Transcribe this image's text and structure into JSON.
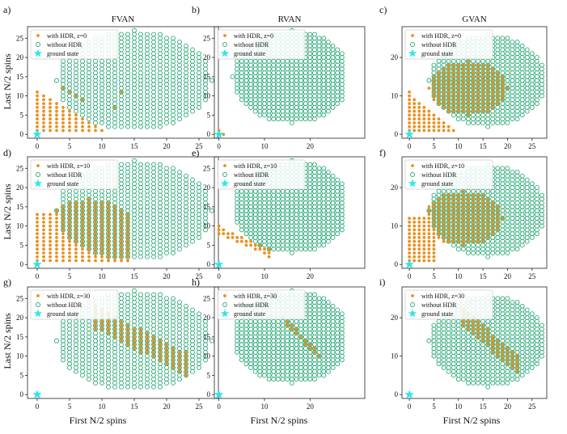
{
  "figure": {
    "column_titles": [
      "FVAN",
      "RVAN",
      "GVAN"
    ],
    "xlabel": "First N/2 spins",
    "ylabel": "Last N/2 spins"
  },
  "colors": {
    "hdr": "#e8901e",
    "no_hdr": "#2aa876",
    "ground": "#2ee6e6"
  },
  "chart_data": [
    {
      "panel": "a)",
      "type": "scatter",
      "title": "FVAN",
      "z_label": "with HDR, z=0",
      "legend": [
        "with HDR, z=0",
        "without HDR",
        "ground state"
      ],
      "xticks": [
        0,
        5,
        10,
        15,
        20,
        25
      ],
      "yticks": [
        0,
        5,
        10,
        15,
        20,
        25
      ],
      "xlim": [
        -1.5,
        28
      ],
      "ylim": [
        -1,
        28
      ],
      "ground_state": [
        0,
        0
      ],
      "nohdr": {
        "cx": 15,
        "cy": 14,
        "rx": 12,
        "ry": 13,
        "ymin": 2,
        "x0": 2
      },
      "hdr": [
        {
          "kind": "tri",
          "x0": 0,
          "x1": 10,
          "y0": 1,
          "y1": 11
        },
        {
          "kind": "pts",
          "list": [
            [
              4,
              12
            ],
            [
              5,
              11
            ],
            [
              6,
              10
            ],
            [
              7,
              9
            ],
            [
              13,
              11
            ],
            [
              12,
              7
            ]
          ]
        },
        {
          "kind": "pts",
          "list": [
            [
              1,
              1
            ]
          ]
        }
      ]
    },
    {
      "panel": "b)",
      "type": "scatter",
      "title": "RVAN",
      "z_label": "with HDR, z=0",
      "legend": [
        "with HDR, z=0",
        "without HDR",
        "ground state"
      ],
      "xticks": [
        0,
        10,
        20
      ],
      "yticks": [
        0,
        5,
        10,
        15,
        20,
        25
      ],
      "xlim": [
        -1,
        32
      ],
      "ylim": [
        -1,
        28
      ],
      "ground_state": [
        0,
        0
      ],
      "nohdr": {
        "cx": 16,
        "cy": 15,
        "rx": 13,
        "ry": 12,
        "ymin": 3,
        "x0": 2
      },
      "hdr": [
        {
          "kind": "pts",
          "list": [
            [
              0,
              1
            ],
            [
              1,
              0
            ],
            [
              0,
              0
            ]
          ]
        }
      ]
    },
    {
      "panel": "c)",
      "type": "scatter",
      "title": "GVAN",
      "z_label": "with HDR, z=0",
      "legend": [
        "with HDR, z=0",
        "without HDR",
        "ground state"
      ],
      "xticks": [
        0,
        5,
        10,
        15,
        20,
        25
      ],
      "yticks": [
        0,
        10,
        20
      ],
      "xlim": [
        -1.5,
        28
      ],
      "ylim": [
        -1,
        28
      ],
      "ground_state": [
        0,
        0
      ],
      "nohdr": {
        "cx": 16,
        "cy": 14,
        "rx": 12,
        "ry": 12,
        "ymin": 2,
        "x0": 2
      },
      "hdr": [
        {
          "kind": "tri",
          "x0": 0,
          "x1": 9,
          "y0": 1,
          "y1": 11
        },
        {
          "kind": "ell",
          "cx": 12,
          "cy": 12,
          "rx": 8,
          "ry": 7
        }
      ]
    },
    {
      "panel": "d)",
      "type": "scatter",
      "title": "",
      "z_label": "with HDR, z=10",
      "legend": [
        "with HDR, z=10",
        "without HDR",
        "ground state"
      ],
      "xticks": [
        0,
        5,
        10,
        15,
        20,
        25
      ],
      "yticks": [
        0,
        5,
        10,
        15,
        20,
        25
      ],
      "xlim": [
        -1.5,
        28
      ],
      "ylim": [
        -1,
        28
      ],
      "ground_state": [
        0,
        0
      ],
      "nohdr": {
        "cx": 15,
        "cy": 14,
        "rx": 12,
        "ry": 13,
        "ymin": 2,
        "x0": 3
      },
      "hdr": [
        {
          "kind": "rect",
          "x0": 0,
          "x1": 14,
          "y0": 1,
          "y1": 13
        },
        {
          "kind": "ell",
          "cx": 8,
          "cy": 12,
          "rx": 6,
          "ry": 5
        }
      ]
    },
    {
      "panel": "e)",
      "type": "scatter",
      "title": "",
      "z_label": "with HDR, z=10",
      "legend": [
        "with HDR, z=10",
        "without HDR",
        "ground state"
      ],
      "xticks": [
        0,
        10,
        20
      ],
      "yticks": [
        0,
        5,
        10,
        15,
        20,
        25
      ],
      "xlim": [
        -1,
        32
      ],
      "ylim": [
        -1,
        28
      ],
      "ground_state": [
        0,
        0
      ],
      "nohdr": {
        "cx": 16,
        "cy": 15,
        "rx": 13,
        "ry": 12,
        "ymin": 3,
        "x0": 4
      },
      "hdr": [
        {
          "kind": "band",
          "x0": 0,
          "x1": 11,
          "y0": 9,
          "y1": 3,
          "w": 2
        }
      ]
    },
    {
      "panel": "f)",
      "type": "scatter",
      "title": "",
      "z_label": "with HDR, z=10",
      "legend": [
        "with HDR, z=10",
        "without HDR",
        "ground state"
      ],
      "xticks": [
        0,
        5,
        10,
        15,
        20,
        25
      ],
      "yticks": [
        0,
        10,
        20
      ],
      "xlim": [
        -1.5,
        28
      ],
      "ylim": [
        -1,
        28
      ],
      "ground_state": [
        0,
        0
      ],
      "nohdr": {
        "cx": 16,
        "cy": 14,
        "rx": 12,
        "ry": 12,
        "ymin": 2,
        "x0": 3
      },
      "hdr": [
        {
          "kind": "rect",
          "x0": 0,
          "x1": 5,
          "y0": 1,
          "y1": 12
        },
        {
          "kind": "ell",
          "cx": 11,
          "cy": 12,
          "rx": 8,
          "ry": 7
        }
      ]
    },
    {
      "panel": "g)",
      "type": "scatter",
      "title": "",
      "z_label": "with HDR, z=30",
      "legend": [
        "with HDR, z=30",
        "without HDR",
        "ground state"
      ],
      "xticks": [
        0,
        5,
        10,
        15,
        20,
        25
      ],
      "yticks": [
        0,
        5,
        10,
        15,
        20,
        25
      ],
      "xlim": [
        -1.5,
        28
      ],
      "ylim": [
        -1,
        28
      ],
      "ground_state": [
        0,
        0
      ],
      "nohdr": {
        "cx": 15,
        "cy": 14,
        "rx": 12,
        "ry": 13,
        "ymin": 2,
        "x0": 3
      },
      "hdr": [
        {
          "kind": "band",
          "x0": 9,
          "x1": 23,
          "y0": 20,
          "y1": 8,
          "w": 6
        }
      ]
    },
    {
      "panel": "h)",
      "type": "scatter",
      "title": "",
      "z_label": "with HDR, z=30",
      "legend": [
        "with HDR, z=30",
        "without HDR",
        "ground state"
      ],
      "xticks": [
        0,
        10,
        20
      ],
      "yticks": [
        0,
        5,
        10,
        15,
        20,
        25
      ],
      "xlim": [
        -1,
        32
      ],
      "ylim": [
        -1,
        28
      ],
      "ground_state": [
        0,
        0
      ],
      "nohdr": {
        "cx": 16,
        "cy": 15,
        "rx": 13,
        "ry": 12,
        "ymin": 3,
        "x0": 4
      },
      "hdr": [
        {
          "kind": "band",
          "x0": 14,
          "x1": 22,
          "y0": 20,
          "y1": 10,
          "w": 1.5
        }
      ]
    },
    {
      "panel": "i)",
      "type": "scatter",
      "title": "",
      "z_label": "with HDR, z=30",
      "legend": [
        "with HDR, z=30",
        "without HDR",
        "ground state"
      ],
      "xticks": [
        0,
        5,
        10,
        15,
        20,
        25
      ],
      "yticks": [
        0,
        10,
        20
      ],
      "xlim": [
        -1.5,
        28
      ],
      "ylim": [
        -1,
        28
      ],
      "ground_state": [
        0,
        0
      ],
      "nohdr": {
        "cx": 16,
        "cy": 14,
        "rx": 12,
        "ry": 12,
        "ymin": 2,
        "x0": 3
      },
      "hdr": [
        {
          "kind": "band",
          "x0": 11,
          "x1": 22,
          "y0": 20,
          "y1": 8,
          "w": 5
        }
      ]
    }
  ]
}
